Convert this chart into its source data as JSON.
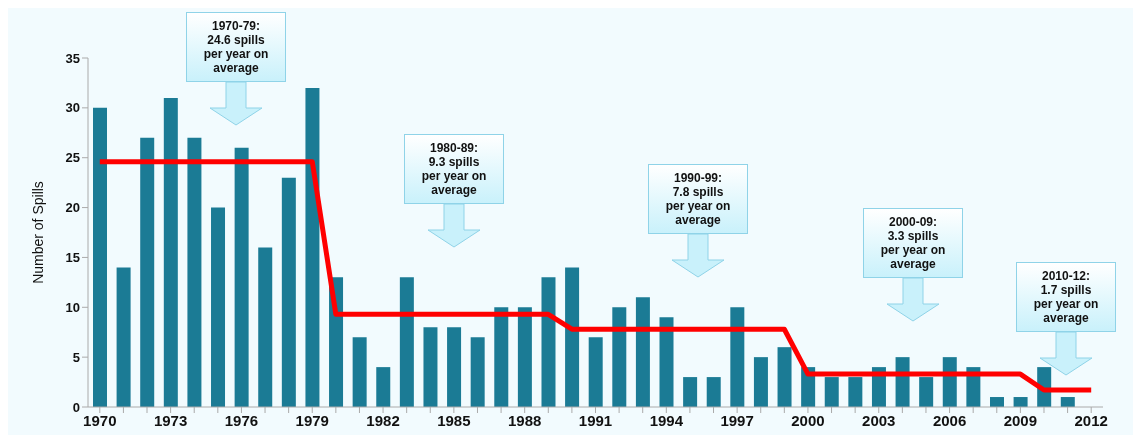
{
  "chart_data": {
    "type": "bar",
    "ylabel": "Number of Spills",
    "categories": [
      "1970",
      null,
      null,
      "1973",
      null,
      null,
      "1976",
      null,
      null,
      "1979",
      null,
      null,
      "1982",
      null,
      null,
      "1985",
      null,
      null,
      "1988",
      null,
      null,
      "1991",
      null,
      null,
      "1994",
      null,
      null,
      "1997",
      null,
      null,
      "2000",
      null,
      null,
      "2003",
      null,
      null,
      "2006",
      null,
      null,
      "2009",
      null,
      null,
      "2012"
    ],
    "series": [
      {
        "color": "#1b7b95",
        "values": [
          30,
          14,
          27,
          31,
          27,
          20,
          26,
          16,
          23,
          32,
          13,
          7,
          4,
          13,
          8,
          8,
          7,
          10,
          10,
          13,
          14,
          7,
          10,
          11,
          9,
          3,
          3,
          10,
          5,
          6,
          4,
          3,
          3,
          4,
          5,
          3,
          5,
          4,
          1,
          1,
          4,
          1,
          0
        ]
      },
      {
        "type": "line",
        "color": "#ff0000",
        "values": [
          24.6,
          24.6,
          24.6,
          24.6,
          24.6,
          24.6,
          24.6,
          24.6,
          24.6,
          24.6,
          9.3,
          9.3,
          9.3,
          9.3,
          9.3,
          9.3,
          9.3,
          9.3,
          9.3,
          9.3,
          7.8,
          7.8,
          7.8,
          7.8,
          7.8,
          7.8,
          7.8,
          7.8,
          7.8,
          7.8,
          3.3,
          3.3,
          3.3,
          3.3,
          3.3,
          3.3,
          3.3,
          3.3,
          3.3,
          3.3,
          1.7,
          1.7,
          1.7
        ]
      }
    ],
    "ylim": [
      0,
      35
    ],
    "yticks": [
      0,
      5,
      10,
      15,
      20,
      25,
      30,
      35
    ],
    "grid": false,
    "legend": false,
    "annotations": [
      "1970-79:\n24.6 spills\nper year on\naverage",
      "1980-89:\n9.3 spills\nper year on\naverage",
      "1990-99:\n7.8 spills\nper year on\naverage",
      "2000-09:\n3.3 spills\nper year on\naverage",
      "2010-12:\n1.7 spills\nper year on\naverage"
    ]
  }
}
